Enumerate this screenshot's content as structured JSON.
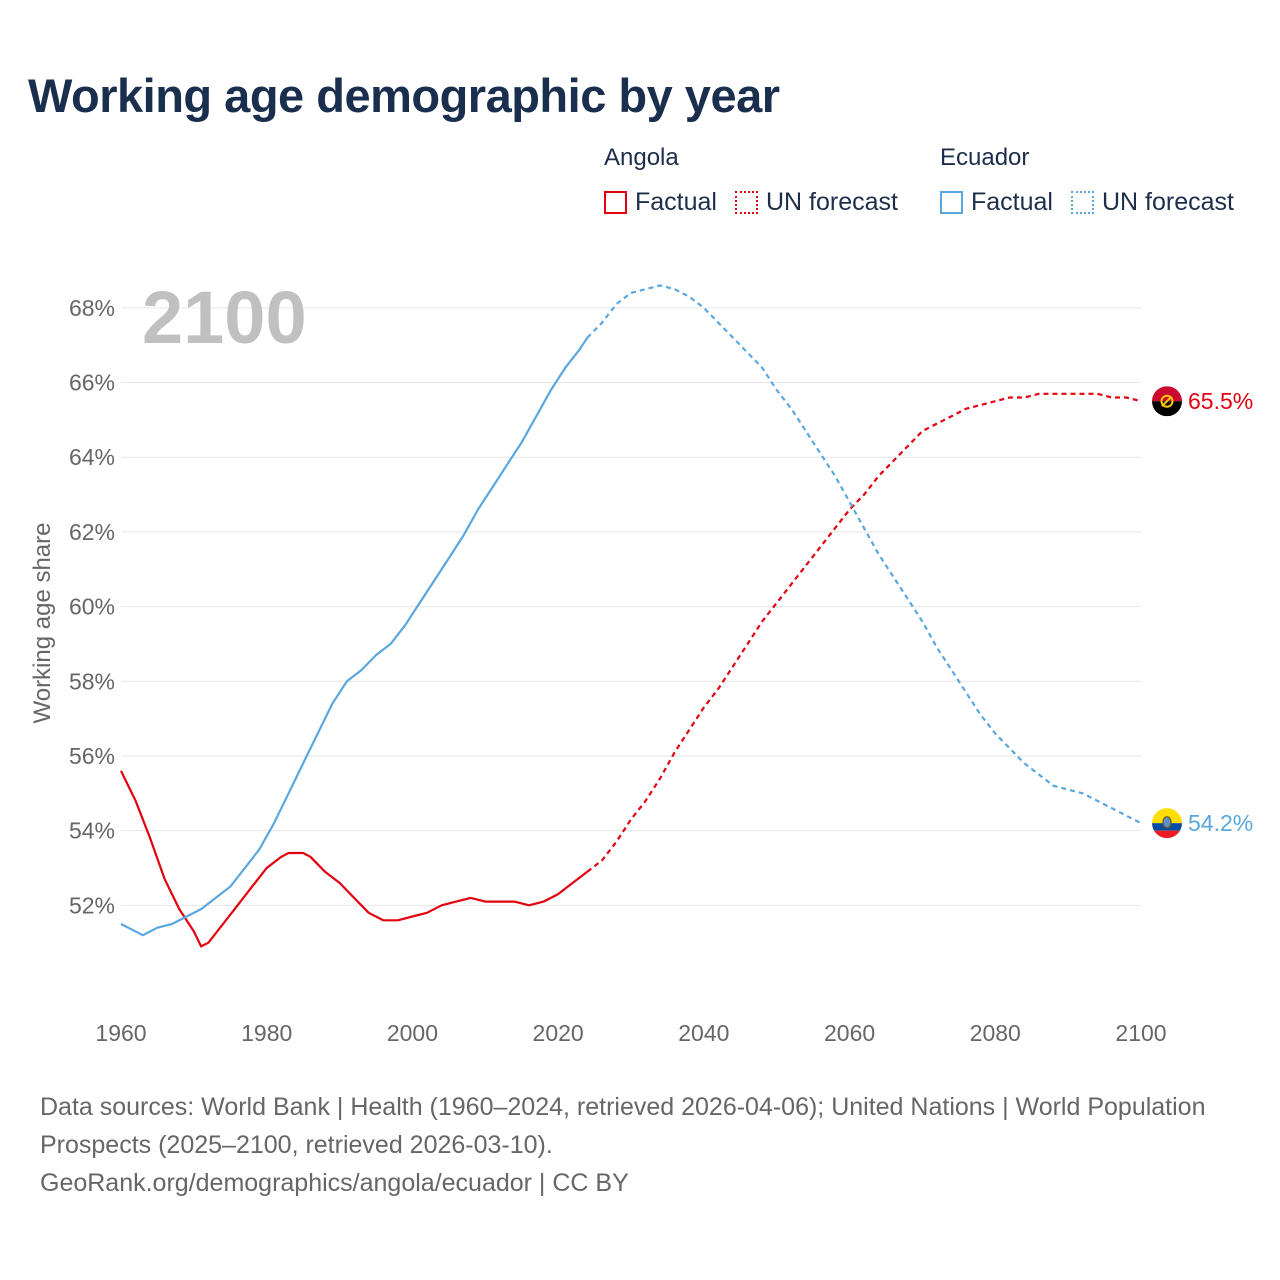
{
  "title": "Working age demographic by year",
  "legend": [
    {
      "country": "Angola",
      "factual_label": "Factual",
      "forecast_label": "UN forecast",
      "color": "#e3000f"
    },
    {
      "country": "Ecuador",
      "factual_label": "Factual",
      "forecast_label": "UN forecast",
      "color": "#5aa7e0"
    }
  ],
  "sources": {
    "line1": "Data sources: World Bank | Health (1960–2024, retrieved 2026-04-06); United Nations | World Population Prospects (2025–2100, retrieved 2026-03-10).",
    "line2": "GeoRank.org/demographics/angola/ecuador | CC BY"
  },
  "chart_data": {
    "type": "line",
    "title": "Working age demographic by year",
    "ylabel": "Working age share",
    "xlabel": "",
    "year_label": "2100",
    "xlim": [
      1960,
      2100
    ],
    "ylim": [
      50,
      68.8
    ],
    "x_ticks": [
      1960,
      1980,
      2000,
      2020,
      2040,
      2060,
      2080,
      2100
    ],
    "y_ticks": [
      52,
      54,
      56,
      58,
      60,
      62,
      64,
      66,
      68
    ],
    "y_tick_labels": [
      "52%",
      "54%",
      "56%",
      "58%",
      "60%",
      "62%",
      "64%",
      "66%",
      "68%"
    ],
    "grid": true,
    "factual_end_year": 2024,
    "series": [
      {
        "name": "Angola",
        "color": "#e3000f",
        "end_label": "65.5%",
        "end_icon": "angola-flag-icon",
        "points": [
          [
            1960,
            55.6
          ],
          [
            1962,
            54.8
          ],
          [
            1964,
            53.8
          ],
          [
            1966,
            52.7
          ],
          [
            1968,
            51.9
          ],
          [
            1970,
            51.3
          ],
          [
            1971,
            50.9
          ],
          [
            1972,
            51.0
          ],
          [
            1974,
            51.5
          ],
          [
            1976,
            52.0
          ],
          [
            1978,
            52.5
          ],
          [
            1980,
            53.0
          ],
          [
            1982,
            53.3
          ],
          [
            1983,
            53.4
          ],
          [
            1985,
            53.4
          ],
          [
            1986,
            53.3
          ],
          [
            1988,
            52.9
          ],
          [
            1990,
            52.6
          ],
          [
            1992,
            52.2
          ],
          [
            1994,
            51.8
          ],
          [
            1996,
            51.6
          ],
          [
            1998,
            51.6
          ],
          [
            2000,
            51.7
          ],
          [
            2002,
            51.8
          ],
          [
            2004,
            52.0
          ],
          [
            2006,
            52.1
          ],
          [
            2008,
            52.2
          ],
          [
            2010,
            52.1
          ],
          [
            2012,
            52.1
          ],
          [
            2014,
            52.1
          ],
          [
            2016,
            52.0
          ],
          [
            2018,
            52.1
          ],
          [
            2020,
            52.3
          ],
          [
            2022,
            52.6
          ],
          [
            2024,
            52.9
          ],
          [
            2026,
            53.2
          ],
          [
            2028,
            53.7
          ],
          [
            2030,
            54.3
          ],
          [
            2032,
            54.8
          ],
          [
            2034,
            55.4
          ],
          [
            2036,
            56.1
          ],
          [
            2038,
            56.7
          ],
          [
            2040,
            57.3
          ],
          [
            2042,
            57.8
          ],
          [
            2044,
            58.4
          ],
          [
            2046,
            59.0
          ],
          [
            2048,
            59.6
          ],
          [
            2050,
            60.1
          ],
          [
            2052,
            60.6
          ],
          [
            2054,
            61.1
          ],
          [
            2056,
            61.6
          ],
          [
            2058,
            62.1
          ],
          [
            2060,
            62.6
          ],
          [
            2062,
            63.0
          ],
          [
            2064,
            63.5
          ],
          [
            2066,
            63.9
          ],
          [
            2068,
            64.3
          ],
          [
            2070,
            64.7
          ],
          [
            2072,
            64.9
          ],
          [
            2074,
            65.1
          ],
          [
            2076,
            65.3
          ],
          [
            2078,
            65.4
          ],
          [
            2080,
            65.5
          ],
          [
            2082,
            65.6
          ],
          [
            2084,
            65.6
          ],
          [
            2086,
            65.7
          ],
          [
            2088,
            65.7
          ],
          [
            2090,
            65.7
          ],
          [
            2092,
            65.7
          ],
          [
            2094,
            65.7
          ],
          [
            2096,
            65.6
          ],
          [
            2098,
            65.6
          ],
          [
            2100,
            65.5
          ]
        ]
      },
      {
        "name": "Ecuador",
        "color": "#5aa7e0",
        "end_label": "54.2%",
        "end_icon": "ecuador-flag-icon",
        "points": [
          [
            1960,
            51.5
          ],
          [
            1963,
            51.2
          ],
          [
            1965,
            51.4
          ],
          [
            1967,
            51.5
          ],
          [
            1969,
            51.7
          ],
          [
            1971,
            51.9
          ],
          [
            1973,
            52.2
          ],
          [
            1975,
            52.5
          ],
          [
            1977,
            53.0
          ],
          [
            1979,
            53.5
          ],
          [
            1981,
            54.2
          ],
          [
            1983,
            55.0
          ],
          [
            1985,
            55.8
          ],
          [
            1987,
            56.6
          ],
          [
            1989,
            57.4
          ],
          [
            1991,
            58.0
          ],
          [
            1993,
            58.3
          ],
          [
            1995,
            58.7
          ],
          [
            1997,
            59.0
          ],
          [
            1999,
            59.5
          ],
          [
            2001,
            60.1
          ],
          [
            2003,
            60.7
          ],
          [
            2005,
            61.3
          ],
          [
            2007,
            61.9
          ],
          [
            2009,
            62.6
          ],
          [
            2011,
            63.2
          ],
          [
            2013,
            63.8
          ],
          [
            2015,
            64.4
          ],
          [
            2017,
            65.1
          ],
          [
            2019,
            65.8
          ],
          [
            2021,
            66.4
          ],
          [
            2023,
            66.9
          ],
          [
            2024,
            67.2
          ],
          [
            2026,
            67.6
          ],
          [
            2028,
            68.1
          ],
          [
            2030,
            68.4
          ],
          [
            2032,
            68.5
          ],
          [
            2034,
            68.6
          ],
          [
            2036,
            68.5
          ],
          [
            2038,
            68.3
          ],
          [
            2040,
            68.0
          ],
          [
            2042,
            67.6
          ],
          [
            2044,
            67.2
          ],
          [
            2046,
            66.8
          ],
          [
            2048,
            66.4
          ],
          [
            2050,
            65.8
          ],
          [
            2052,
            65.3
          ],
          [
            2054,
            64.7
          ],
          [
            2056,
            64.1
          ],
          [
            2058,
            63.5
          ],
          [
            2060,
            62.8
          ],
          [
            2062,
            62.1
          ],
          [
            2064,
            61.4
          ],
          [
            2066,
            60.8
          ],
          [
            2068,
            60.2
          ],
          [
            2070,
            59.6
          ],
          [
            2072,
            58.9
          ],
          [
            2074,
            58.3
          ],
          [
            2076,
            57.7
          ],
          [
            2078,
            57.1
          ],
          [
            2080,
            56.6
          ],
          [
            2082,
            56.2
          ],
          [
            2084,
            55.8
          ],
          [
            2086,
            55.5
          ],
          [
            2088,
            55.2
          ],
          [
            2090,
            55.1
          ],
          [
            2092,
            55.0
          ],
          [
            2094,
            54.8
          ],
          [
            2096,
            54.6
          ],
          [
            2098,
            54.4
          ],
          [
            2100,
            54.2
          ]
        ]
      }
    ]
  }
}
